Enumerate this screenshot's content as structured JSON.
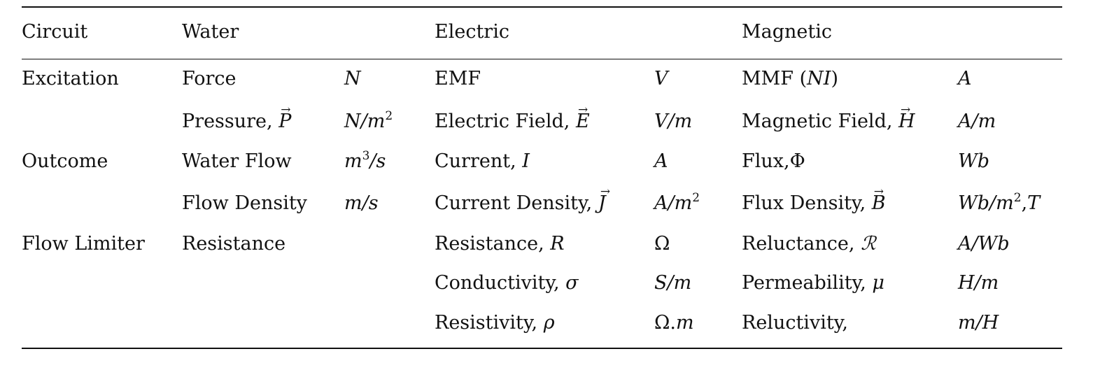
{
  "table": {
    "headers": {
      "circuit": "Circuit",
      "water": "Water",
      "electric": "Electric",
      "magnetic": "Magnetic"
    },
    "rows": [
      {
        "category": "Excitation",
        "water_qty": "Force",
        "water_unit": "N",
        "electric_qty": "EMF",
        "electric_unit": "V",
        "magnetic_qty": "MMF (NI)",
        "magnetic_unit": "A"
      },
      {
        "category": "",
        "water_qty": "Pressure, P⃗",
        "water_unit": "N/m²",
        "electric_qty": "Electric Field, E⃗",
        "electric_unit": "V/m",
        "magnetic_qty": "Magnetic Field, H⃗",
        "magnetic_unit": "A/m"
      },
      {
        "category": "Outcome",
        "water_qty": "Water Flow",
        "water_unit": "m³/s",
        "electric_qty": "Current, I",
        "electric_unit": "A",
        "magnetic_qty": "Flux,Φ",
        "magnetic_unit": "Wb"
      },
      {
        "category": "",
        "water_qty": "Flow Density",
        "water_unit": "m/s",
        "electric_qty": "Current Density, J⃗",
        "electric_unit": "A/m²",
        "magnetic_qty": "Flux Density, B⃗",
        "magnetic_unit": "Wb/m², T"
      },
      {
        "category": "Flow Limiter",
        "water_qty": "Resistance",
        "water_unit": "",
        "electric_qty": "Resistance, R",
        "electric_unit": "Ω",
        "magnetic_qty": "Reluctance, ℛ",
        "magnetic_unit": "A/Wb"
      },
      {
        "category": "",
        "water_qty": "",
        "water_unit": "",
        "electric_qty": "Conductivity, σ",
        "electric_unit": "S/m",
        "magnetic_qty": "Permeability, μ",
        "magnetic_unit": "H/m"
      },
      {
        "category": "",
        "water_qty": "",
        "water_unit": "",
        "electric_qty": "Resistivity, ρ",
        "electric_unit": "Ω.m",
        "magnetic_qty": "Reluctivity,",
        "magnetic_unit": "m/H"
      }
    ],
    "parts": {
      "pressure_word": "Pressure,",
      "pressure_sym": "P",
      "efield_word": "Electric Field,",
      "efield_sym": "E",
      "hfield_word": "Magnetic Field,",
      "hfield_sym": "H",
      "current_word": "Current,",
      "current_sym": "I",
      "flux_word": "Flux,",
      "flux_sym": "Φ",
      "jdens_word": "Current Density,",
      "jdens_sym": "J",
      "bdens_word": "Flux Density,",
      "bdens_sym": "B",
      "res_word": "Resistance,",
      "res_sym": "R",
      "rel_word": "Reluctance,",
      "rel_sym": "ℛ",
      "cond_word": "Conductivity,",
      "cond_sym": "σ",
      "perm_word": "Permeability,",
      "perm_sym": "μ",
      "resist_word": "Resistivity,",
      "resist_sym": "ρ",
      "mmf_word": "MMF",
      "mmf_sym": "NI",
      "u_N": "N",
      "u_Nm2_base": "N/m",
      "u_V": "V",
      "u_Vm": "V/m",
      "u_A": "A",
      "u_Am": "A/m",
      "u_m3s_base": "m",
      "u_m3s_tail": "/s",
      "u_Wb": "Wb",
      "u_ms": "m/s",
      "u_Am2_base": "A/m",
      "u_Wbm2_base": "Wb/m",
      "u_T": "T",
      "u_Ohm": "Ω",
      "u_AWb": "A/Wb",
      "u_Sm": "S/m",
      "u_Hm": "H/m",
      "u_Ohmm_a": "Ω.",
      "u_Ohmm_b": "m",
      "u_mH": "m/H",
      "sup2": "2",
      "sup3": "3"
    }
  }
}
